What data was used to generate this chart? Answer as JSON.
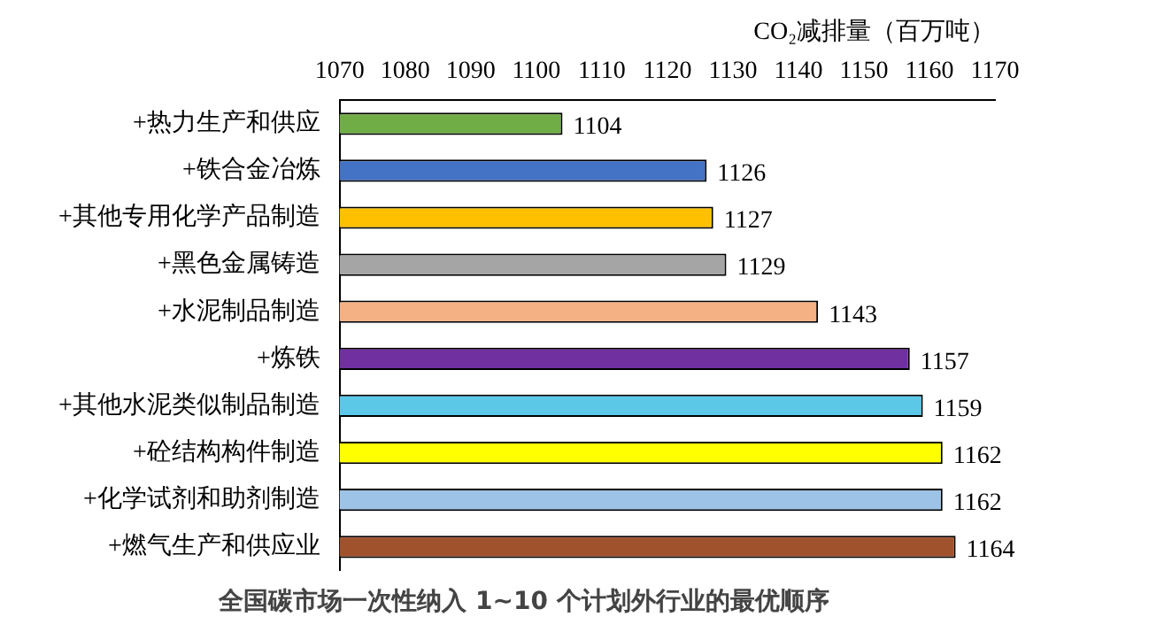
{
  "chart_data": {
    "type": "bar",
    "orientation": "horizontal",
    "title": "全国碳市场一次性纳入 1~10 个计划外行业的最优顺序",
    "xlabel": "CO₂减排量（百万吨）",
    "categories": [
      "+热力生产和供应",
      "+铁合金冶炼",
      "+其他专用化学产品制造",
      "+黑色金属铸造",
      "+水泥制品制造",
      "+炼铁",
      "+其他水泥类似制品制造",
      "+砼结构构件制造",
      "+化学试剂和助剂制造",
      "+燃气生产和供应业"
    ],
    "values": [
      1104,
      1126,
      1127,
      1129,
      1143,
      1157,
      1159,
      1162,
      1162,
      1164
    ],
    "colors": [
      "#70ad47",
      "#4472c4",
      "#ffc000",
      "#a5a5a5",
      "#f4b183",
      "#7030a0",
      "#5bc8e8",
      "#ffff00",
      "#9dc3e6",
      "#a0522d"
    ],
    "xlim": [
      1070,
      1170
    ],
    "xticks": [
      1070,
      1080,
      1090,
      1100,
      1110,
      1120,
      1130,
      1140,
      1150,
      1160,
      1170
    ],
    "data_labels": true,
    "grid": false,
    "legend": false
  }
}
